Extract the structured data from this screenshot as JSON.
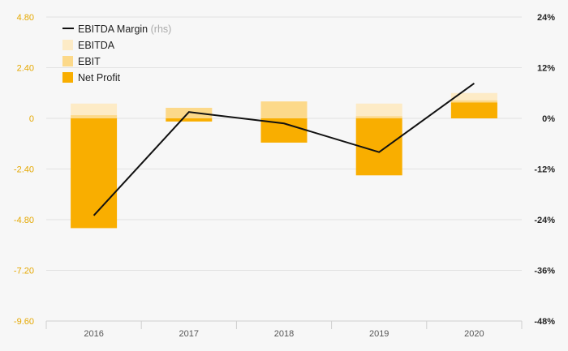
{
  "chart_data": {
    "type": "bar",
    "categories": [
      "2016",
      "2017",
      "2018",
      "2019",
      "2020"
    ],
    "series": [
      {
        "name": "EBITDA",
        "kind": "bar",
        "axis": "left",
        "color": "#fdebc6",
        "values": [
          0.7,
          0.5,
          0.8,
          0.7,
          1.2
        ]
      },
      {
        "name": "EBIT",
        "kind": "bar",
        "axis": "left",
        "color": "#fcd98a",
        "values": [
          0.15,
          0.5,
          0.8,
          0.1,
          0.85
        ]
      },
      {
        "name": "Net Profit",
        "kind": "bar",
        "axis": "left",
        "color": "#f9ae00",
        "values": [
          -5.2,
          -0.15,
          -1.15,
          -2.7,
          0.75
        ]
      },
      {
        "name": "EBITDA Margin",
        "legend_suffix": "(rhs)",
        "kind": "line",
        "axis": "right",
        "color": "#111111",
        "values": [
          -23,
          1.5,
          -1.2,
          -8,
          8.3
        ]
      }
    ],
    "y_left": {
      "min": -9.6,
      "max": 4.8,
      "ticks": [
        "4.80",
        "2.40",
        "0",
        "-2.40",
        "-4.80",
        "-7.20",
        "-9.60"
      ],
      "tick_values": [
        4.8,
        2.4,
        0,
        -2.4,
        -4.8,
        -7.2,
        -9.6
      ],
      "color": "#e5a800"
    },
    "y_right": {
      "min": -48,
      "max": 24,
      "ticks": [
        "24%",
        "12%",
        "0%",
        "-12%",
        "-24%",
        "-36%",
        "-48%"
      ],
      "tick_values": [
        24,
        12,
        0,
        -12,
        -24,
        -36,
        -48
      ]
    },
    "grid": true,
    "legend_position": "top-left"
  }
}
